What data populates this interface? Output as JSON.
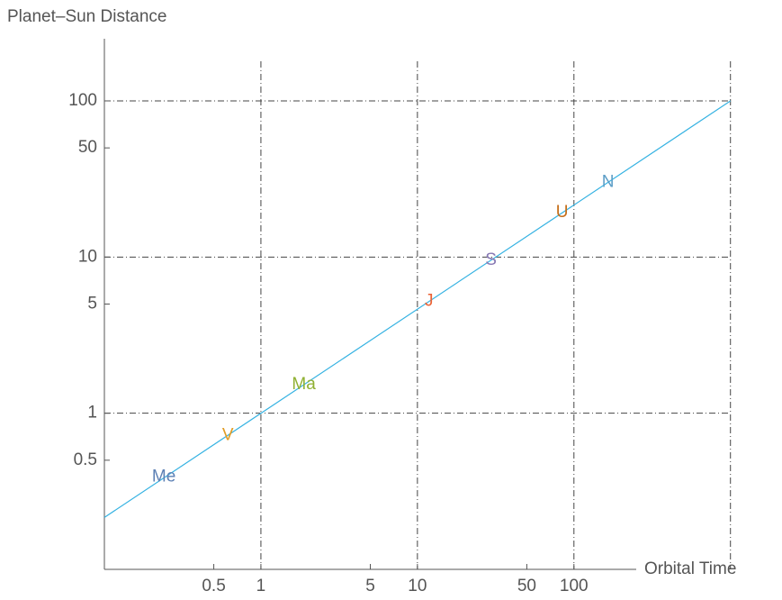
{
  "chart_data": {
    "type": "line",
    "ylabel": "Planet–Sun Distance",
    "xlabel": "Orbital Time",
    "xscale": "log",
    "yscale": "log",
    "xlim": [
      0.1,
      250
    ],
    "ylim": [
      0.1,
      250
    ],
    "xticks": [
      0.5,
      1,
      5,
      10,
      50,
      100
    ],
    "yticks": [
      0.5,
      1,
      5,
      10,
      50,
      100
    ],
    "xgrid": [
      1,
      10,
      100,
      1000
    ],
    "ygrid": [
      1,
      10,
      100
    ],
    "series": [
      {
        "color": "#35b2e2",
        "x": [
          0.1,
          1000
        ],
        "values": [
          0.215,
          100
        ]
      }
    ],
    "points": [
      {
        "label": "Me",
        "x": 0.24,
        "y": 0.39,
        "color": "#5e81b5"
      },
      {
        "label": "V",
        "x": 0.615,
        "y": 0.72,
        "color": "#e19c24"
      },
      {
        "label": "Ma",
        "x": 1.88,
        "y": 1.52,
        "color": "#8fb032"
      },
      {
        "label": "J",
        "x": 11.86,
        "y": 5.2,
        "color": "#eb6235"
      },
      {
        "label": "S",
        "x": 29.5,
        "y": 9.54,
        "color": "#8778b3"
      },
      {
        "label": "U",
        "x": 84,
        "y": 19.2,
        "color": "#c56e1a"
      },
      {
        "label": "N",
        "x": 165,
        "y": 30.1,
        "color": "#5d9ec7"
      }
    ]
  }
}
